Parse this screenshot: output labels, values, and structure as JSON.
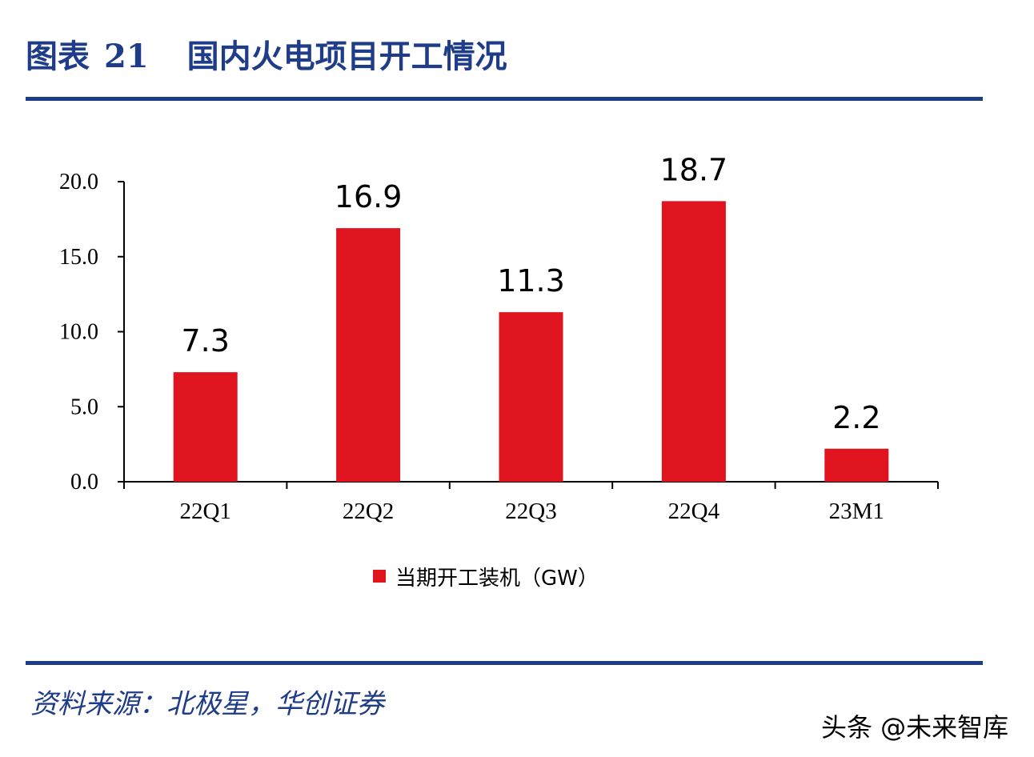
{
  "header": {
    "figure_label": "图表",
    "figure_number": "21",
    "title": "国内火电项目开工情况"
  },
  "chart_data": {
    "type": "bar",
    "title": "国内火电项目开工情况",
    "categories": [
      "22Q1",
      "22Q2",
      "22Q3",
      "22Q4",
      "23M1"
    ],
    "series": [
      {
        "name": "当期开工装机（GW）",
        "values": [
          7.3,
          16.9,
          11.3,
          18.7,
          2.2
        ]
      }
    ],
    "data_labels": [
      "7.3",
      "16.9",
      "11.3",
      "18.7",
      "2.2"
    ],
    "ylim": [
      0,
      20
    ],
    "yticks": [
      "0.0",
      "5.0",
      "10.0",
      "15.0",
      "20.0"
    ],
    "xlabel": "",
    "ylabel": "",
    "grid": false,
    "legend_position": "bottom",
    "colors": {
      "bar": "#e0141e",
      "axis": "#000000"
    }
  },
  "legend": {
    "label": "当期开工装机（GW）"
  },
  "source": "资料来源：北极星，华创证券",
  "watermark": "头条 @未来智库",
  "colors": {
    "accent": "#1f3c88"
  }
}
